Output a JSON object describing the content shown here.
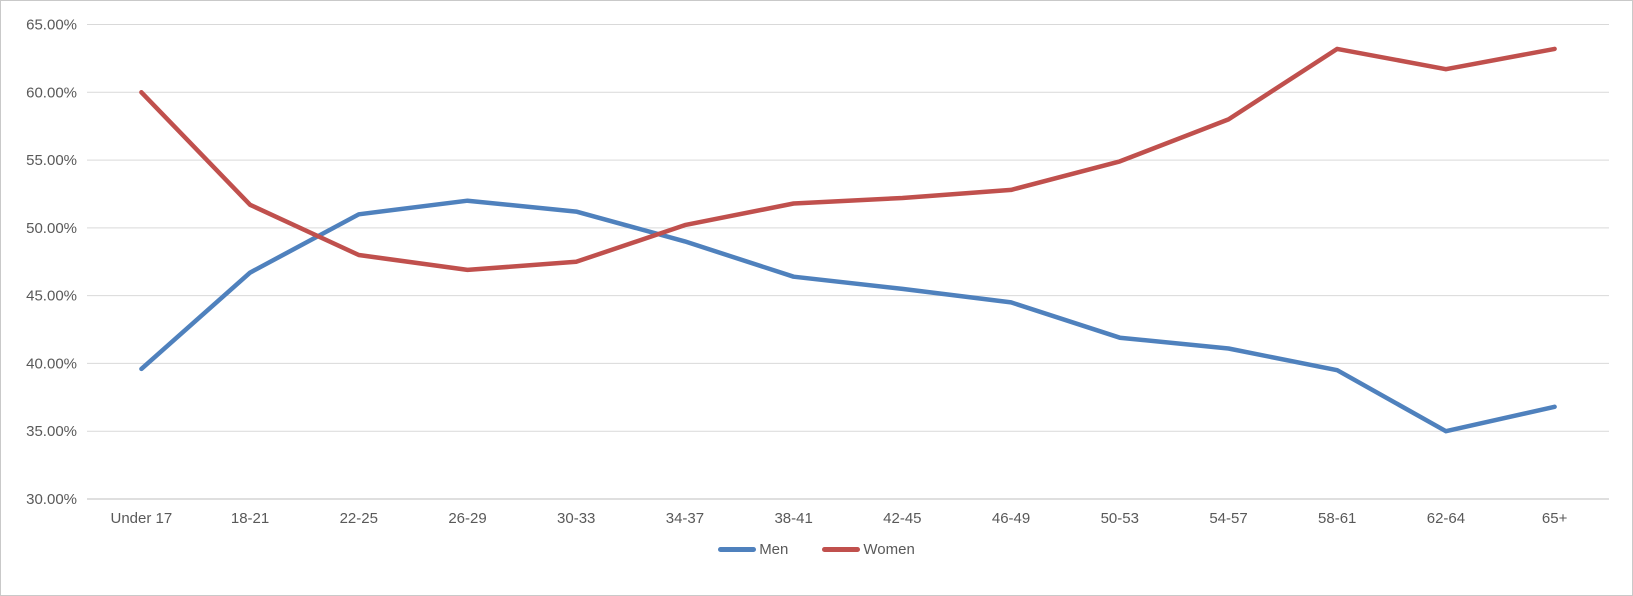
{
  "chart_data": {
    "type": "line",
    "title": "",
    "xlabel": "",
    "ylabel": "",
    "categories": [
      "Under 17",
      "18-21",
      "22-25",
      "26-29",
      "30-33",
      "34-37",
      "38-41",
      "42-45",
      "46-49",
      "50-53",
      "54-57",
      "58-61",
      "62-64",
      "65+"
    ],
    "series": [
      {
        "name": "Men",
        "color": "#4F81BD",
        "values": [
          39.6,
          46.7,
          51.0,
          52.0,
          51.2,
          49.0,
          46.4,
          45.5,
          44.5,
          41.9,
          41.1,
          39.5,
          35.0,
          36.8
        ]
      },
      {
        "name": "Women",
        "color": "#C0504D",
        "values": [
          60.0,
          51.7,
          48.0,
          46.9,
          47.5,
          50.2,
          51.8,
          52.2,
          52.8,
          54.9,
          58.0,
          63.2,
          61.7,
          63.2
        ]
      }
    ],
    "ylim": [
      30,
      65
    ],
    "ytick_step": 5,
    "y_tick_labels": [
      "65.00%",
      "60.00%",
      "55.00%",
      "50.00%",
      "45.00%",
      "40.00%",
      "35.00%",
      "30.00%"
    ],
    "grid": "horizontal",
    "legend_position": "bottom"
  },
  "colors": {
    "gridline": "#D9D9D9",
    "axis_line": "#BFBFBF",
    "tick_text": "#595959",
    "frame_border": "#C9C9C9",
    "background": "#FFFFFF"
  }
}
